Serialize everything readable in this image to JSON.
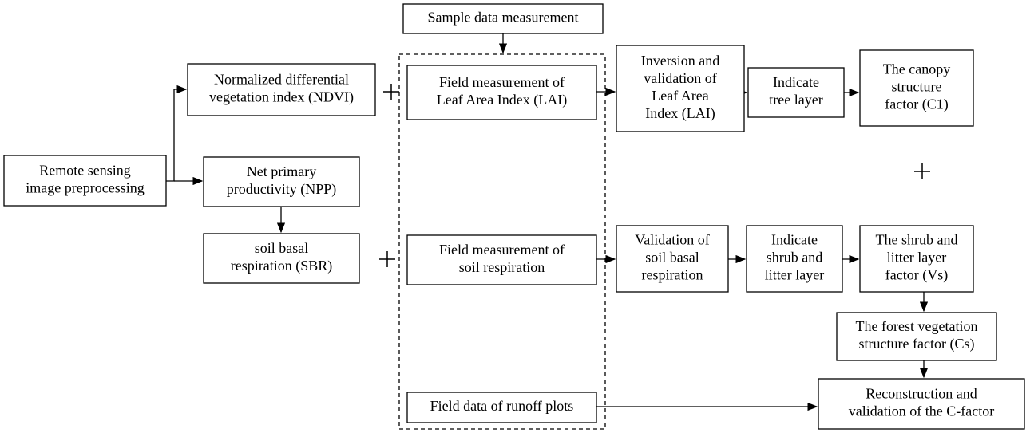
{
  "nodes": [
    {
      "lines": [
        "Sample data measurement"
      ]
    },
    {
      "lines": [
        "Remote sensing",
        "image preprocessing"
      ]
    },
    {
      "lines": [
        "Normalized differential",
        "vegetation index (NDVI)"
      ]
    },
    {
      "lines": [
        "Net primary",
        "productivity (NPP)"
      ]
    },
    {
      "lines": [
        "soil basal",
        "respiration (SBR)"
      ]
    },
    {
      "lines": [
        "Field measurement of",
        "Leaf Area Index (LAI)"
      ]
    },
    {
      "lines": [
        "Field measurement of",
        "soil respiration"
      ]
    },
    {
      "lines": [
        "Field data of runoff plots"
      ]
    },
    {
      "lines": [
        "Inversion and",
        "validation of",
        "Leaf Area",
        "Index (LAI)"
      ]
    },
    {
      "lines": [
        "Indicate",
        "tree layer"
      ]
    },
    {
      "lines": [
        "The canopy",
        "structure",
        "factor (C1)"
      ]
    },
    {
      "lines": [
        "Validation of",
        "soil basal",
        "respiration"
      ]
    },
    {
      "lines": [
        "Indicate",
        "shrub and",
        "litter layer"
      ]
    },
    {
      "lines": [
        "The shrub and",
        "litter layer",
        "factor (Vs)"
      ]
    },
    {
      "lines": [
        "The forest vegetation",
        "structure factor (Cs)"
      ]
    },
    {
      "lines": [
        "Reconstruction and",
        "validation of the C-factor"
      ]
    }
  ]
}
